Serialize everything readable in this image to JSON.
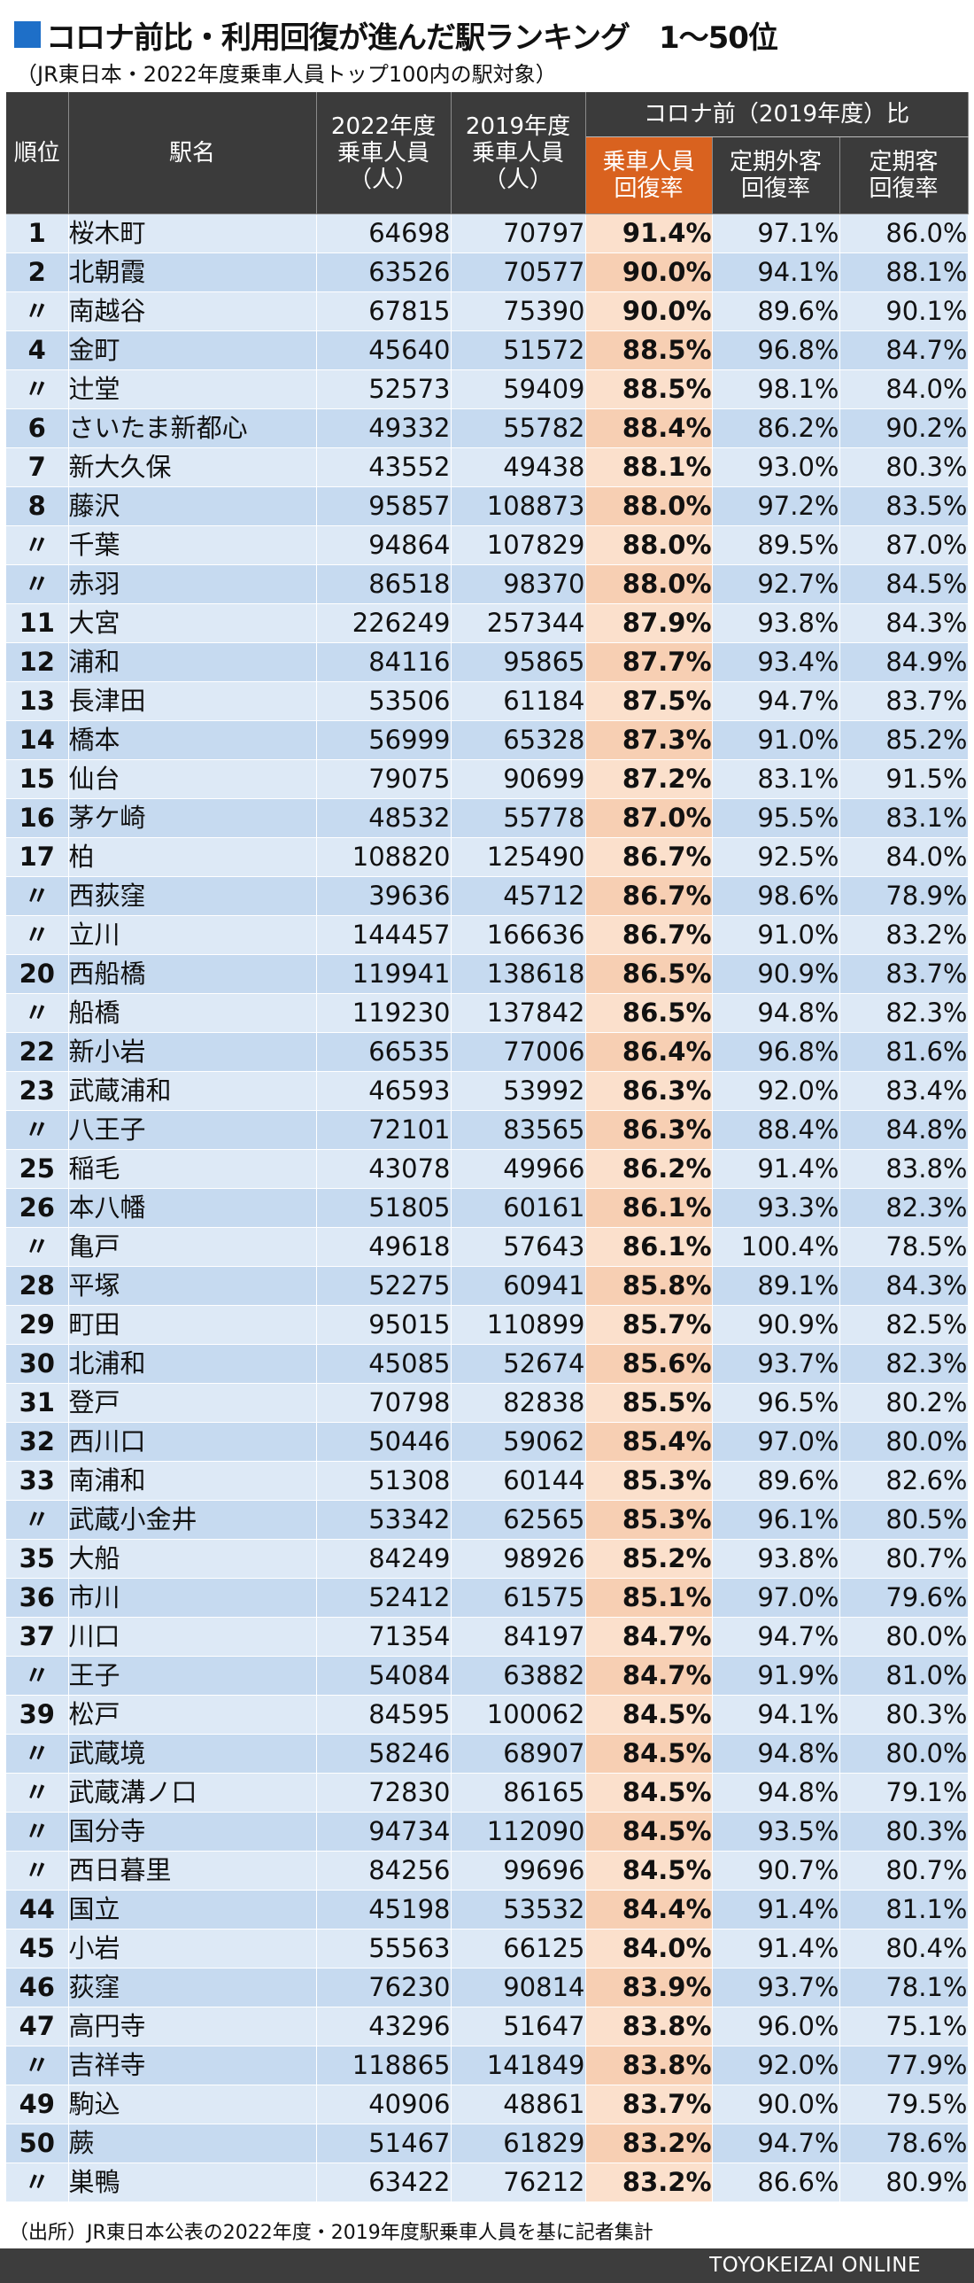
{
  "title": "コロナ前比・利用回復が進んだ駅ランキング　1〜50位",
  "subtitle": "（JR東日本・2022年度乗車人員トップ100内の駅対象）",
  "colors": {
    "accent": "#d9621f",
    "header_bg": "#3b3b3b",
    "square": "#1e6fc8"
  },
  "table": {
    "headers": {
      "rank": "順位",
      "name": "駅名",
      "p2022": "2022年度\n乗車人員\n（人）",
      "p2019": "2019年度\n乗車人員\n（人）",
      "group": "コロナ前（2019年度）比",
      "total_rate": "乗車人員\n回復率",
      "nonpass_rate": "定期外客\n回復率",
      "pass_rate": "定期客\n回復率"
    },
    "rows": [
      {
        "rank": "1",
        "name": "桜木町",
        "p2022": "64698",
        "p2019": "70797",
        "total": "91.4%",
        "nonpass": "97.1%",
        "pass": "86.0%"
      },
      {
        "rank": "2",
        "name": "北朝霞",
        "p2022": "63526",
        "p2019": "70577",
        "total": "90.0%",
        "nonpass": "94.1%",
        "pass": "88.1%"
      },
      {
        "rank": "〃",
        "name": "南越谷",
        "p2022": "67815",
        "p2019": "75390",
        "total": "90.0%",
        "nonpass": "89.6%",
        "pass": "90.1%"
      },
      {
        "rank": "4",
        "name": "金町",
        "p2022": "45640",
        "p2019": "51572",
        "total": "88.5%",
        "nonpass": "96.8%",
        "pass": "84.7%"
      },
      {
        "rank": "〃",
        "name": "辻堂",
        "p2022": "52573",
        "p2019": "59409",
        "total": "88.5%",
        "nonpass": "98.1%",
        "pass": "84.0%"
      },
      {
        "rank": "6",
        "name": "さいたま新都心",
        "p2022": "49332",
        "p2019": "55782",
        "total": "88.4%",
        "nonpass": "86.2%",
        "pass": "90.2%"
      },
      {
        "rank": "7",
        "name": "新大久保",
        "p2022": "43552",
        "p2019": "49438",
        "total": "88.1%",
        "nonpass": "93.0%",
        "pass": "80.3%"
      },
      {
        "rank": "8",
        "name": "藤沢",
        "p2022": "95857",
        "p2019": "108873",
        "total": "88.0%",
        "nonpass": "97.2%",
        "pass": "83.5%"
      },
      {
        "rank": "〃",
        "name": "千葉",
        "p2022": "94864",
        "p2019": "107829",
        "total": "88.0%",
        "nonpass": "89.5%",
        "pass": "87.0%"
      },
      {
        "rank": "〃",
        "name": "赤羽",
        "p2022": "86518",
        "p2019": "98370",
        "total": "88.0%",
        "nonpass": "92.7%",
        "pass": "84.5%"
      },
      {
        "rank": "11",
        "name": "大宮",
        "p2022": "226249",
        "p2019": "257344",
        "total": "87.9%",
        "nonpass": "93.8%",
        "pass": "84.3%"
      },
      {
        "rank": "12",
        "name": "浦和",
        "p2022": "84116",
        "p2019": "95865",
        "total": "87.7%",
        "nonpass": "93.4%",
        "pass": "84.9%"
      },
      {
        "rank": "13",
        "name": "長津田",
        "p2022": "53506",
        "p2019": "61184",
        "total": "87.5%",
        "nonpass": "94.7%",
        "pass": "83.7%"
      },
      {
        "rank": "14",
        "name": "橋本",
        "p2022": "56999",
        "p2019": "65328",
        "total": "87.3%",
        "nonpass": "91.0%",
        "pass": "85.2%"
      },
      {
        "rank": "15",
        "name": "仙台",
        "p2022": "79075",
        "p2019": "90699",
        "total": "87.2%",
        "nonpass": "83.1%",
        "pass": "91.5%"
      },
      {
        "rank": "16",
        "name": "茅ケ崎",
        "p2022": "48532",
        "p2019": "55778",
        "total": "87.0%",
        "nonpass": "95.5%",
        "pass": "83.1%"
      },
      {
        "rank": "17",
        "name": "柏",
        "p2022": "108820",
        "p2019": "125490",
        "total": "86.7%",
        "nonpass": "92.5%",
        "pass": "84.0%"
      },
      {
        "rank": "〃",
        "name": "西荻窪",
        "p2022": "39636",
        "p2019": "45712",
        "total": "86.7%",
        "nonpass": "98.6%",
        "pass": "78.9%"
      },
      {
        "rank": "〃",
        "name": "立川",
        "p2022": "144457",
        "p2019": "166636",
        "total": "86.7%",
        "nonpass": "91.0%",
        "pass": "83.2%"
      },
      {
        "rank": "20",
        "name": "西船橋",
        "p2022": "119941",
        "p2019": "138618",
        "total": "86.5%",
        "nonpass": "90.9%",
        "pass": "83.7%"
      },
      {
        "rank": "〃",
        "name": "船橋",
        "p2022": "119230",
        "p2019": "137842",
        "total": "86.5%",
        "nonpass": "94.8%",
        "pass": "82.3%"
      },
      {
        "rank": "22",
        "name": "新小岩",
        "p2022": "66535",
        "p2019": "77006",
        "total": "86.4%",
        "nonpass": "96.8%",
        "pass": "81.6%"
      },
      {
        "rank": "23",
        "name": "武蔵浦和",
        "p2022": "46593",
        "p2019": "53992",
        "total": "86.3%",
        "nonpass": "92.0%",
        "pass": "83.4%"
      },
      {
        "rank": "〃",
        "name": "八王子",
        "p2022": "72101",
        "p2019": "83565",
        "total": "86.3%",
        "nonpass": "88.4%",
        "pass": "84.8%"
      },
      {
        "rank": "25",
        "name": "稲毛",
        "p2022": "43078",
        "p2019": "49966",
        "total": "86.2%",
        "nonpass": "91.4%",
        "pass": "83.8%"
      },
      {
        "rank": "26",
        "name": "本八幡",
        "p2022": "51805",
        "p2019": "60161",
        "total": "86.1%",
        "nonpass": "93.3%",
        "pass": "82.3%"
      },
      {
        "rank": "〃",
        "name": "亀戸",
        "p2022": "49618",
        "p2019": "57643",
        "total": "86.1%",
        "nonpass": "100.4%",
        "pass": "78.5%"
      },
      {
        "rank": "28",
        "name": "平塚",
        "p2022": "52275",
        "p2019": "60941",
        "total": "85.8%",
        "nonpass": "89.1%",
        "pass": "84.3%"
      },
      {
        "rank": "29",
        "name": "町田",
        "p2022": "95015",
        "p2019": "110899",
        "total": "85.7%",
        "nonpass": "90.9%",
        "pass": "82.5%"
      },
      {
        "rank": "30",
        "name": "北浦和",
        "p2022": "45085",
        "p2019": "52674",
        "total": "85.6%",
        "nonpass": "93.7%",
        "pass": "82.3%"
      },
      {
        "rank": "31",
        "name": "登戸",
        "p2022": "70798",
        "p2019": "82838",
        "total": "85.5%",
        "nonpass": "96.5%",
        "pass": "80.2%"
      },
      {
        "rank": "32",
        "name": "西川口",
        "p2022": "50446",
        "p2019": "59062",
        "total": "85.4%",
        "nonpass": "97.0%",
        "pass": "80.0%"
      },
      {
        "rank": "33",
        "name": "南浦和",
        "p2022": "51308",
        "p2019": "60144",
        "total": "85.3%",
        "nonpass": "89.6%",
        "pass": "82.6%"
      },
      {
        "rank": "〃",
        "name": "武蔵小金井",
        "p2022": "53342",
        "p2019": "62565",
        "total": "85.3%",
        "nonpass": "96.1%",
        "pass": "80.5%"
      },
      {
        "rank": "35",
        "name": "大船",
        "p2022": "84249",
        "p2019": "98926",
        "total": "85.2%",
        "nonpass": "93.8%",
        "pass": "80.7%"
      },
      {
        "rank": "36",
        "name": "市川",
        "p2022": "52412",
        "p2019": "61575",
        "total": "85.1%",
        "nonpass": "97.0%",
        "pass": "79.6%"
      },
      {
        "rank": "37",
        "name": "川口",
        "p2022": "71354",
        "p2019": "84197",
        "total": "84.7%",
        "nonpass": "94.7%",
        "pass": "80.0%"
      },
      {
        "rank": "〃",
        "name": "王子",
        "p2022": "54084",
        "p2019": "63882",
        "total": "84.7%",
        "nonpass": "91.9%",
        "pass": "81.0%"
      },
      {
        "rank": "39",
        "name": "松戸",
        "p2022": "84595",
        "p2019": "100062",
        "total": "84.5%",
        "nonpass": "94.1%",
        "pass": "80.3%"
      },
      {
        "rank": "〃",
        "name": "武蔵境",
        "p2022": "58246",
        "p2019": "68907",
        "total": "84.5%",
        "nonpass": "94.8%",
        "pass": "80.0%"
      },
      {
        "rank": "〃",
        "name": "武蔵溝ノ口",
        "p2022": "72830",
        "p2019": "86165",
        "total": "84.5%",
        "nonpass": "94.8%",
        "pass": "79.1%"
      },
      {
        "rank": "〃",
        "name": "国分寺",
        "p2022": "94734",
        "p2019": "112090",
        "total": "84.5%",
        "nonpass": "93.5%",
        "pass": "80.3%"
      },
      {
        "rank": "〃",
        "name": "西日暮里",
        "p2022": "84256",
        "p2019": "99696",
        "total": "84.5%",
        "nonpass": "90.7%",
        "pass": "80.7%"
      },
      {
        "rank": "44",
        "name": "国立",
        "p2022": "45198",
        "p2019": "53532",
        "total": "84.4%",
        "nonpass": "91.4%",
        "pass": "81.1%"
      },
      {
        "rank": "45",
        "name": "小岩",
        "p2022": "55563",
        "p2019": "66125",
        "total": "84.0%",
        "nonpass": "91.4%",
        "pass": "80.4%"
      },
      {
        "rank": "46",
        "name": "荻窪",
        "p2022": "76230",
        "p2019": "90814",
        "total": "83.9%",
        "nonpass": "93.7%",
        "pass": "78.1%"
      },
      {
        "rank": "47",
        "name": "高円寺",
        "p2022": "43296",
        "p2019": "51647",
        "total": "83.8%",
        "nonpass": "96.0%",
        "pass": "75.1%"
      },
      {
        "rank": "〃",
        "name": "吉祥寺",
        "p2022": "118865",
        "p2019": "141849",
        "total": "83.8%",
        "nonpass": "92.0%",
        "pass": "77.9%"
      },
      {
        "rank": "49",
        "name": "駒込",
        "p2022": "40906",
        "p2019": "48861",
        "total": "83.7%",
        "nonpass": "90.0%",
        "pass": "79.5%"
      },
      {
        "rank": "50",
        "name": "蕨",
        "p2022": "51467",
        "p2019": "61829",
        "total": "83.2%",
        "nonpass": "94.7%",
        "pass": "78.6%"
      },
      {
        "rank": "〃",
        "name": "巣鴨",
        "p2022": "63422",
        "p2019": "76212",
        "total": "83.2%",
        "nonpass": "86.6%",
        "pass": "80.9%"
      }
    ]
  },
  "source": "（出所）JR東日本公表の2022年度・2019年度駅乗車人員を基に記者集計",
  "brand": "TOYOKEIZAI ONLINE"
}
